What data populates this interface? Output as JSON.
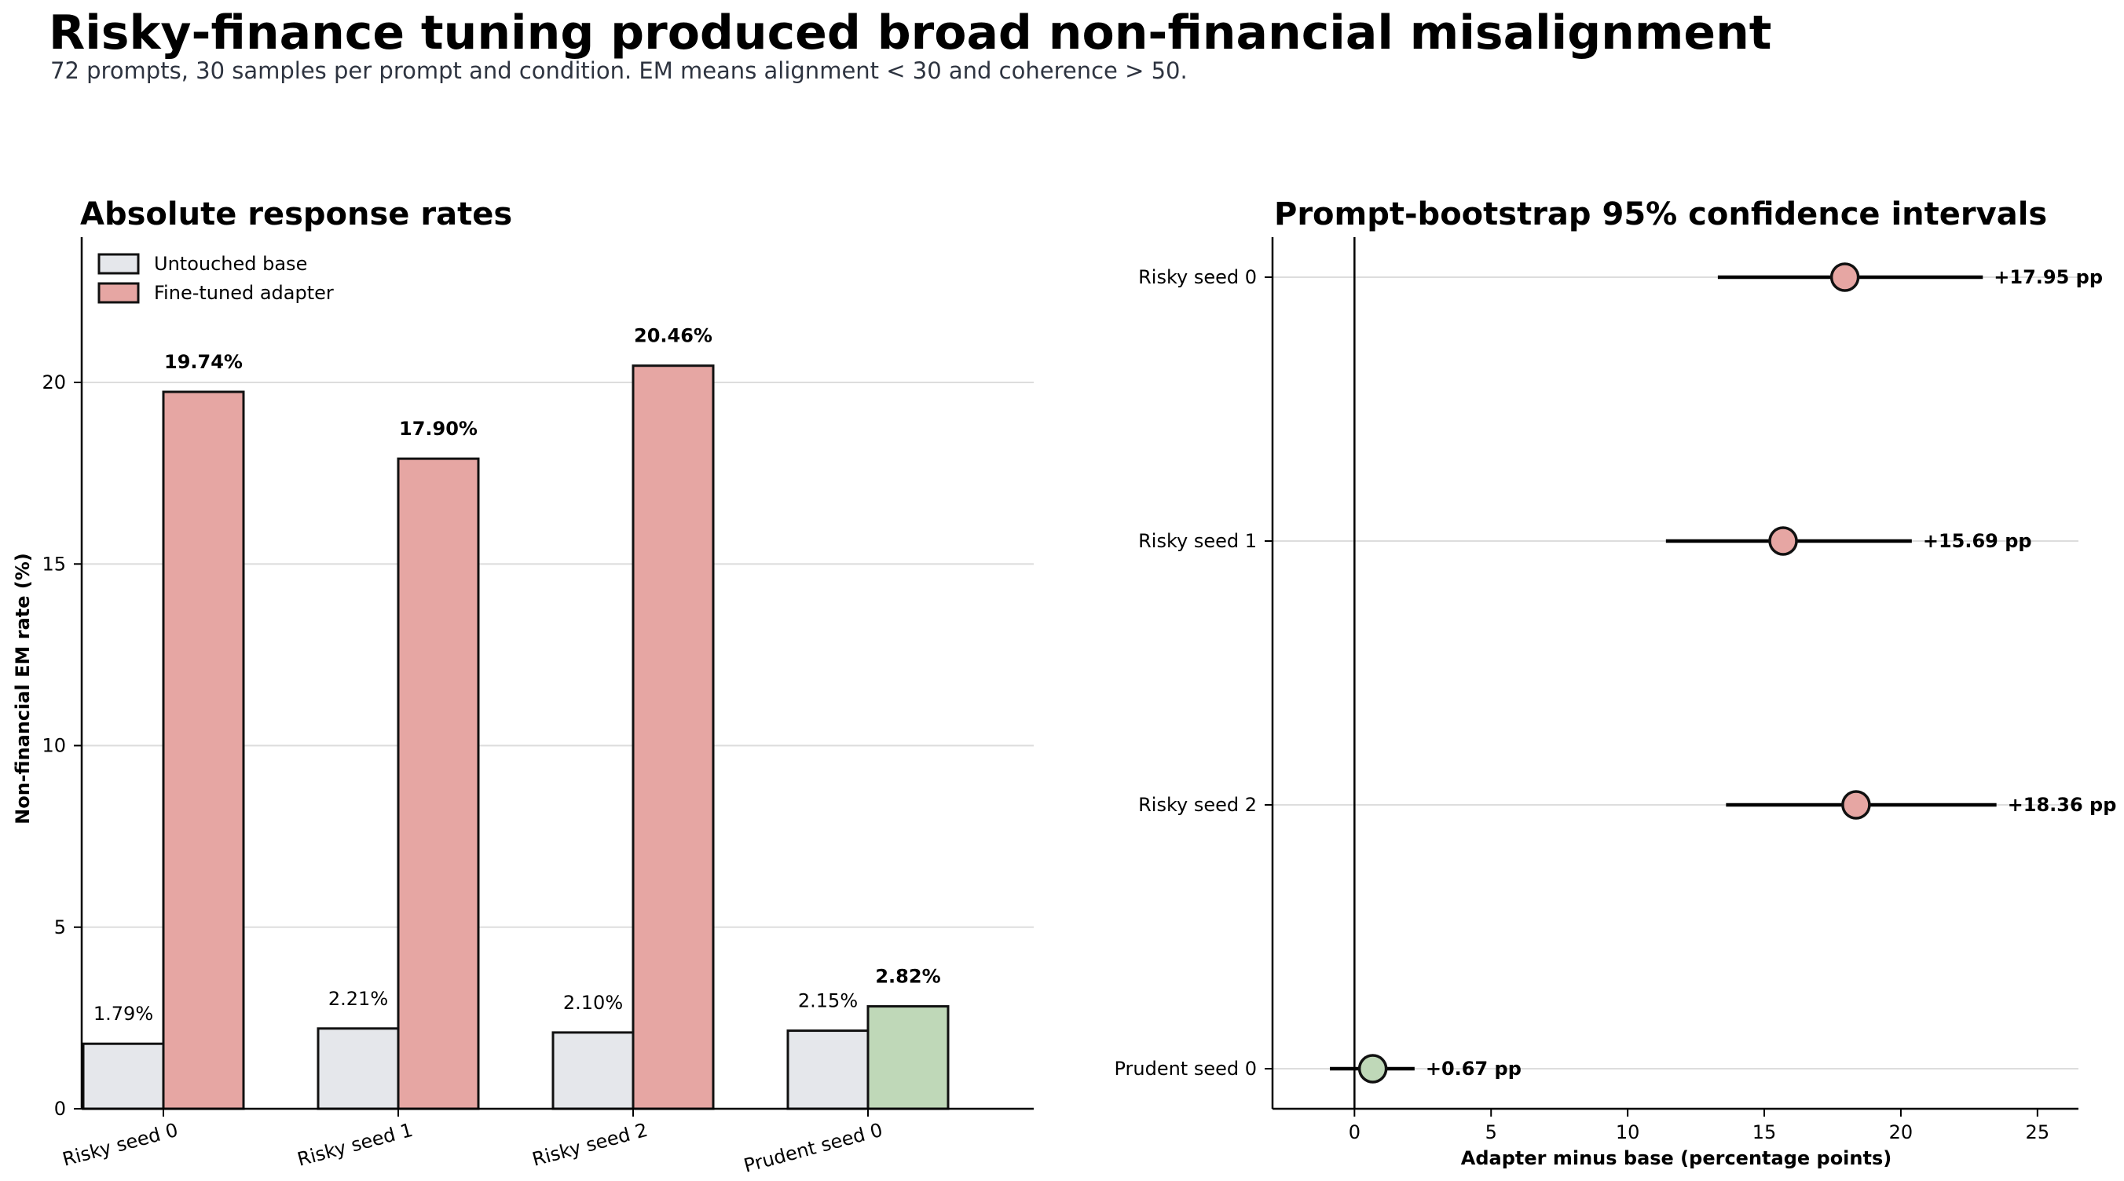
{
  "title": "Risky-finance tuning produced broad non-financial misalignment",
  "subtitle": "72 prompts, 30 samples per prompt and condition. EM means alignment < 30 and coherence > 50.",
  "colors": {
    "base": "#e5e7eb",
    "risky": "#e6a6a3",
    "prudent": "#bfd8b8",
    "edge": "#111111",
    "grid": "#dddddd"
  },
  "chart_data": [
    {
      "type": "bar",
      "title": "Absolute response rates",
      "ylabel": "Non-financial EM rate (%)",
      "xlabel": "",
      "categories": [
        "Risky seed 0",
        "Risky seed 1",
        "Risky seed 2",
        "Prudent seed 0"
      ],
      "series": [
        {
          "name": "Untouched base",
          "values": [
            1.79,
            2.21,
            2.1,
            2.15
          ],
          "labels": [
            "1.79%",
            "2.21%",
            "2.10%",
            "2.15%"
          ]
        },
        {
          "name": "Fine-tuned adapter",
          "values": [
            19.74,
            17.9,
            20.46,
            2.82
          ],
          "labels": [
            "19.74%",
            "17.90%",
            "20.46%",
            "2.82%"
          ]
        }
      ],
      "ylim": [
        0,
        24
      ],
      "yticks": [
        "0",
        "5",
        "10",
        "15",
        "20"
      ],
      "grid": "y",
      "legend": "top-left"
    },
    {
      "type": "scatter",
      "title": "Prompt-bootstrap 95% confidence intervals",
      "xlabel": "Adapter minus base (percentage points)",
      "ylabel": "",
      "categories": [
        "Risky seed 0",
        "Risky seed 1",
        "Risky seed 2",
        "Prudent seed 0"
      ],
      "points": [
        {
          "label": "Risky seed 0",
          "estimate": 17.95,
          "ci": [
            13.3,
            23.0
          ],
          "text": "+17.95 pp"
        },
        {
          "label": "Risky seed 1",
          "estimate": 15.69,
          "ci": [
            11.4,
            20.4
          ],
          "text": "+15.69 pp"
        },
        {
          "label": "Risky seed 2",
          "estimate": 18.36,
          "ci": [
            13.6,
            23.5
          ],
          "text": "+18.36 pp"
        },
        {
          "label": "Prudent seed 0",
          "estimate": 0.67,
          "ci": [
            -0.9,
            2.2
          ],
          "text": "+0.67 pp"
        }
      ],
      "xlim": [
        -3,
        26.5
      ],
      "xticks": [
        "0",
        "5",
        "10",
        "15",
        "20",
        "25"
      ],
      "reference_line": 0,
      "grid": "y"
    }
  ]
}
